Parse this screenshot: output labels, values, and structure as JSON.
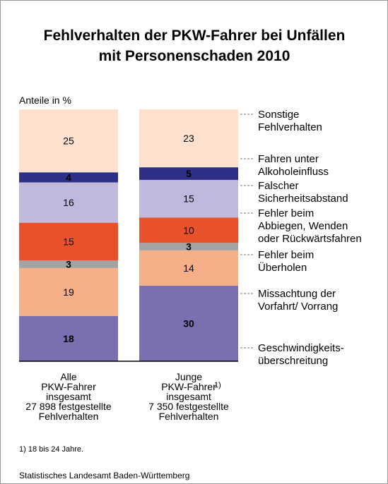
{
  "chart_data": {
    "type": "stacked_bar",
    "title": "Fehlverhalten der PKW-Fahrer bei Unfällen\nmit Personenschaden 2010",
    "y_label": "Anteile in %",
    "categories": [
      "Alle\nPKW-Fahrer\ninsgesamt\n27 898 festgestellte\nFehlverhalten",
      "Junge\nPKW-Fahrer\ninsgesamt\n7 350 festgestellte\nFehlverhalten"
    ],
    "category_notes": [
      null,
      "1)"
    ],
    "ylim": [
      0,
      100
    ],
    "series": [
      {
        "name": "Geschwindigkeits-\nüberschreitung",
        "color": "#7b6fb0",
        "label_color": "#ffffff",
        "values": [
          18,
          30
        ]
      },
      {
        "name": "Missachtung der\nVorfahrt/ Vorrang",
        "color": "#f6b089",
        "label_color": "#000000",
        "values": [
          19,
          14
        ]
      },
      {
        "name": "Fehler beim\nÜberholen",
        "color": "#a3a3a3",
        "label_color": "#ffffff",
        "values": [
          3,
          3
        ]
      },
      {
        "name": "Fehler beim\nAbbiegen, Wenden\noder Rückwärtsfahren",
        "color": "#e8522a",
        "label_color": "#000000",
        "values": [
          15,
          10
        ]
      },
      {
        "name": "Falscher\nSicherheitsabstand",
        "color": "#c0b9dd",
        "label_color": "#000000",
        "values": [
          16,
          15
        ]
      },
      {
        "name": "Fahren unter\nAlkoholeinfluss",
        "color": "#2e3088",
        "label_color": "#ffffff",
        "values": [
          4,
          5
        ]
      },
      {
        "name": "Sonstige\nFehlverhalten",
        "color": "#fde0cd",
        "label_color": "#000000",
        "values": [
          25,
          23
        ]
      }
    ],
    "footnote": "1) 18 bis 24 Jahre.",
    "source": "Statistisches Landesamt Baden-Württemberg"
  }
}
